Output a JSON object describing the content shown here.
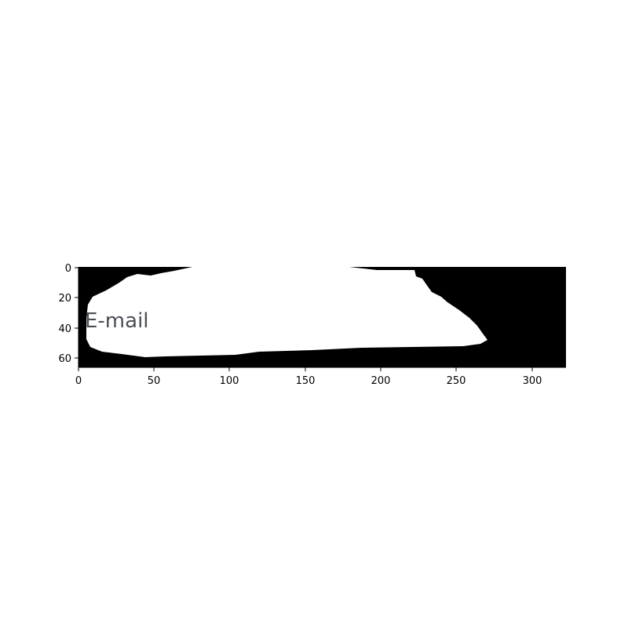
{
  "image_view": {
    "visible_text": "E-mail",
    "colors": {
      "mask_background": "#000000",
      "mask_foreground": "#ffffff",
      "text": "#4a4e56"
    }
  },
  "axes": {
    "x_ticks": [
      "0",
      "50",
      "100",
      "150",
      "200",
      "250",
      "300"
    ],
    "y_ticks": [
      "0",
      "20",
      "40",
      "60"
    ],
    "x_range": [
      0,
      322
    ],
    "y_range": [
      66,
      0
    ]
  }
}
